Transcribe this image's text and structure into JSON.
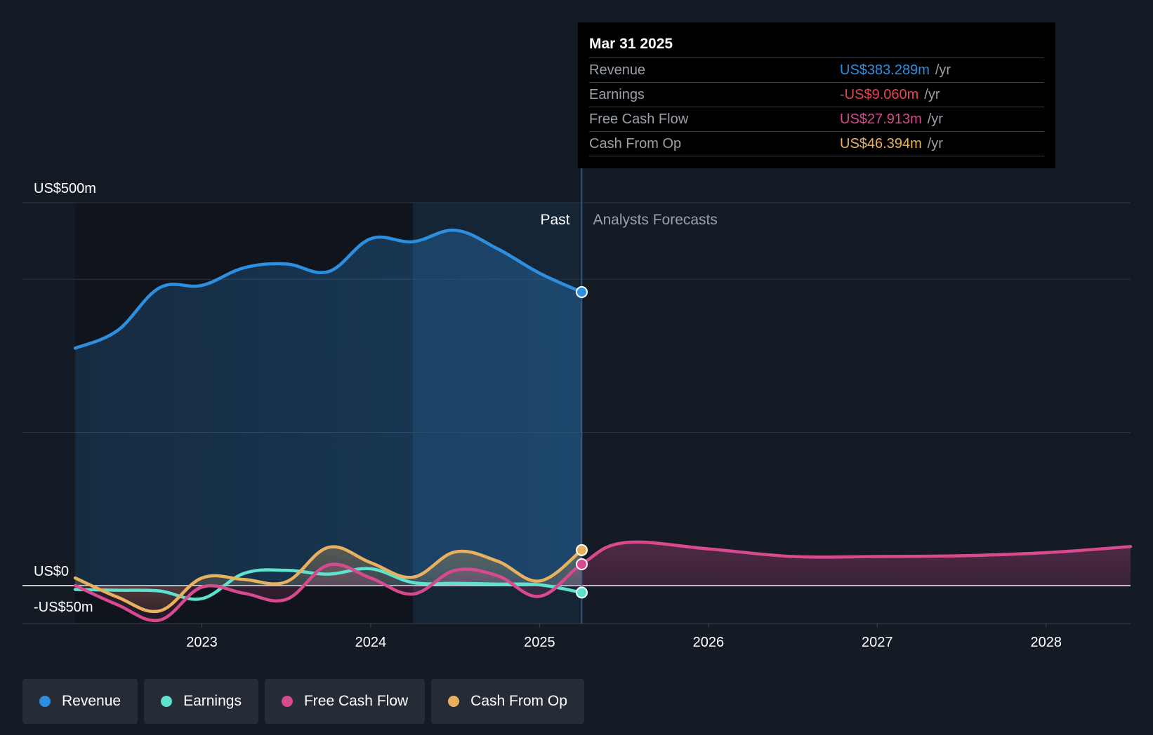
{
  "chart_data": {
    "type": "line",
    "x_axis": {
      "ticks": [
        "2023",
        "2024",
        "2025",
        "2026",
        "2027",
        "2028"
      ]
    },
    "y_axis": {
      "ticks": [
        {
          "value": 500,
          "label": "US$500m"
        },
        {
          "value": 0,
          "label": "US$0"
        },
        {
          "value": -50,
          "label": "-US$50m"
        }
      ],
      "gridlines": [
        500,
        400,
        200,
        0
      ],
      "ylim": [
        -50,
        500
      ]
    },
    "regions": {
      "past_label": "Past",
      "forecast_label": "Analysts Forecasts",
      "divider_date": 2025.25
    },
    "series": [
      {
        "name": "Revenue",
        "color": "#2d8fe0",
        "fill": true,
        "points": [
          [
            2022.25,
            310
          ],
          [
            2022.5,
            333
          ],
          [
            2022.75,
            389
          ],
          [
            2023.0,
            392
          ],
          [
            2023.25,
            415
          ],
          [
            2023.5,
            420
          ],
          [
            2023.75,
            410
          ],
          [
            2024.0,
            453
          ],
          [
            2024.25,
            449
          ],
          [
            2024.5,
            464
          ],
          [
            2024.75,
            440
          ],
          [
            2025.0,
            408
          ],
          [
            2025.25,
            383.289
          ]
        ]
      },
      {
        "name": "Earnings",
        "color": "#5de2cf",
        "fill": false,
        "points": [
          [
            2022.25,
            -5
          ],
          [
            2022.5,
            -6
          ],
          [
            2022.75,
            -7
          ],
          [
            2023.0,
            -17
          ],
          [
            2023.25,
            16
          ],
          [
            2023.5,
            20
          ],
          [
            2023.75,
            15
          ],
          [
            2024.0,
            22
          ],
          [
            2024.25,
            4
          ],
          [
            2024.5,
            3
          ],
          [
            2024.75,
            2
          ],
          [
            2025.0,
            1
          ],
          [
            2025.25,
            -9.06
          ]
        ]
      },
      {
        "name": "Free Cash Flow",
        "color": "#d84a8f",
        "fill": false,
        "points": [
          [
            2022.25,
            0
          ],
          [
            2022.5,
            -25
          ],
          [
            2022.75,
            -45
          ],
          [
            2023.0,
            -2
          ],
          [
            2023.25,
            -10
          ],
          [
            2023.5,
            -18
          ],
          [
            2023.75,
            27
          ],
          [
            2024.0,
            10
          ],
          [
            2024.25,
            -11
          ],
          [
            2024.5,
            20
          ],
          [
            2024.75,
            13
          ],
          [
            2025.0,
            -14
          ],
          [
            2025.25,
            27.913
          ],
          [
            2025.5,
            56
          ],
          [
            2026.0,
            48
          ],
          [
            2026.5,
            38
          ],
          [
            2027.0,
            38
          ],
          [
            2027.5,
            39
          ],
          [
            2028.0,
            43
          ],
          [
            2028.5,
            51
          ]
        ]
      },
      {
        "name": "Cash From Op",
        "color": "#e8b15f",
        "fill": false,
        "points": [
          [
            2022.25,
            10
          ],
          [
            2022.5,
            -15
          ],
          [
            2022.75,
            -33
          ],
          [
            2023.0,
            10
          ],
          [
            2023.25,
            8
          ],
          [
            2023.5,
            5
          ],
          [
            2023.75,
            50
          ],
          [
            2024.0,
            30
          ],
          [
            2024.25,
            11
          ],
          [
            2024.5,
            44
          ],
          [
            2024.75,
            32
          ],
          [
            2025.0,
            6
          ],
          [
            2025.25,
            46.394
          ]
        ]
      }
    ]
  },
  "tooltip": {
    "date": "Mar 31 2025",
    "rows": [
      {
        "label": "Revenue",
        "value": "US$383.289m",
        "unit": "/yr",
        "color": "#2d8fe0"
      },
      {
        "label": "Earnings",
        "value": "-US$9.060m",
        "unit": "/yr",
        "color": "#e84450"
      },
      {
        "label": "Free Cash Flow",
        "value": "US$27.913m",
        "unit": "/yr",
        "color": "#d84a8f"
      },
      {
        "label": "Cash From Op",
        "value": "US$46.394m",
        "unit": "/yr",
        "color": "#e8b15f"
      }
    ]
  },
  "legend": [
    {
      "label": "Revenue",
      "color": "#2d8fe0"
    },
    {
      "label": "Earnings",
      "color": "#5de2cf"
    },
    {
      "label": "Free Cash Flow",
      "color": "#d84a8f"
    },
    {
      "label": "Cash From Op",
      "color": "#e8b15f"
    }
  ]
}
